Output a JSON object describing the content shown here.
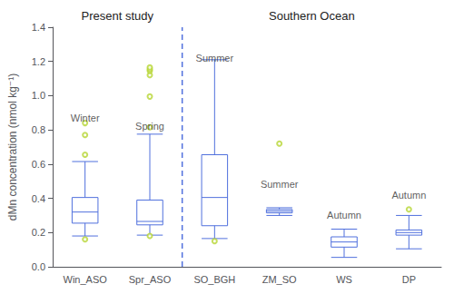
{
  "chart_data": {
    "type": "box",
    "categories": [
      "Win_ASO",
      "Spr_ASO",
      "SO_BGH",
      "ZM_SO",
      "WS",
      "DP"
    ],
    "values": [
      [
        0.18,
        0.255,
        0.32,
        0.405,
        0.615
      ],
      [
        0.185,
        0.245,
        0.265,
        0.39,
        0.775
      ],
      [
        0.165,
        0.24,
        0.405,
        0.655,
        1.21
      ],
      [
        0.3,
        0.315,
        0.325,
        0.335,
        0.345
      ],
      [
        0.055,
        0.115,
        0.145,
        0.175,
        0.22
      ],
      [
        0.105,
        0.185,
        0.2,
        0.215,
        0.3
      ]
    ],
    "fliers": [
      [
        0.16,
        0.655,
        0.77,
        0.84
      ],
      [
        0.18,
        0.815,
        0.995,
        1.12,
        1.145,
        1.155,
        1.165
      ],
      [
        0.15
      ],
      [
        0.72
      ],
      [],
      [
        0.335
      ]
    ],
    "ylabel": "dMn concentration (nmol kg⁻¹)",
    "ylim": [
      0.0,
      1.4
    ],
    "yticks": [
      {
        "value": 0.0,
        "label": "0.0"
      },
      0.2,
      0.4,
      0.6,
      0.8,
      {
        "value": 1.0,
        "label": "1.0"
      },
      1.2,
      1.4
    ],
    "sections": [
      {
        "label": "Present study",
        "categories": [
          "Win_ASO",
          "Spr_ASO"
        ]
      },
      {
        "label": "Southern Ocean",
        "categories": [
          "SO_BGH",
          "ZM_SO",
          "WS",
          "DP"
        ]
      }
    ],
    "annotations": [
      {
        "category": "Win_ASO",
        "text": "Winter",
        "y": 0.91
      },
      {
        "category": "Spr_ASO",
        "text": "Spring",
        "y": 0.86
      },
      {
        "category": "SO_BGH",
        "text": "Summer",
        "y": 1.26
      },
      {
        "category": "ZM_SO",
        "text": "Summer",
        "y": 0.52
      },
      {
        "category": "WS",
        "text": "Autumn",
        "y": 0.34
      },
      {
        "category": "DP",
        "text": "Autumn",
        "y": 0.46
      }
    ],
    "grid": false
  }
}
